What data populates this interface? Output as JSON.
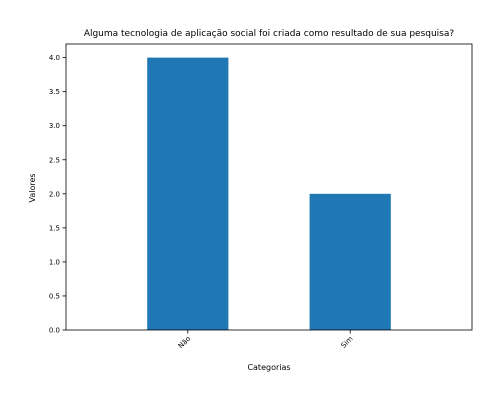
{
  "chart_data": {
    "type": "bar",
    "title": "Alguma tecnologia de aplicação social foi criada como resultado de sua pesquisa?",
    "xlabel": "Categorias",
    "ylabel": "Valores",
    "categories": [
      "Não",
      "Sim"
    ],
    "values": [
      4,
      2
    ],
    "ylim": [
      0,
      4.2
    ],
    "yticks": [
      0.0,
      0.5,
      1.0,
      1.5,
      2.0,
      2.5,
      3.0,
      3.5,
      4.0
    ],
    "ytick_labels": [
      "0.0",
      "0.5",
      "1.0",
      "1.5",
      "2.0",
      "2.5",
      "3.0",
      "3.5",
      "4.0"
    ],
    "grid": false,
    "bar_color": "#1f77b4"
  }
}
